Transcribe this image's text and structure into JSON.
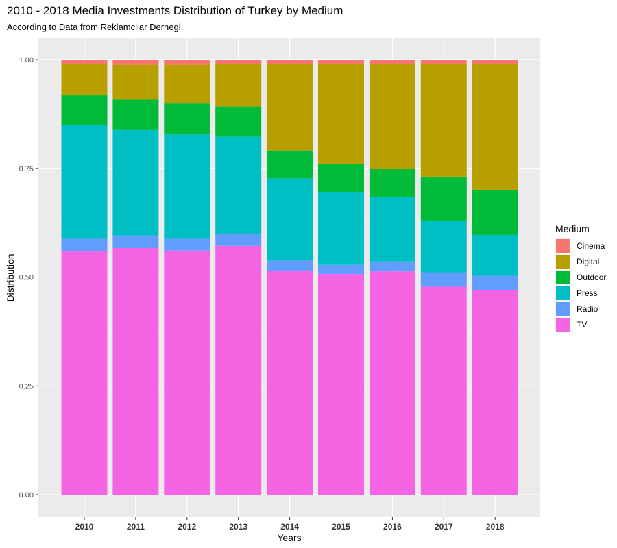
{
  "chart_data": {
    "type": "bar",
    "stacked": true,
    "title": "2010 - 2018 Media Investments Distribution of Turkey by Medium",
    "subtitle": "According to Data from Reklamcilar Dernegi",
    "xlabel": "Years",
    "ylabel": "Distribution",
    "ylim": [
      0,
      1.0
    ],
    "yticks": [
      "0.00",
      "0.25",
      "0.50",
      "0.75",
      "1.00"
    ],
    "grid": true,
    "categories": [
      "2010",
      "2011",
      "2012",
      "2013",
      "2014",
      "2015",
      "2016",
      "2017",
      "2018"
    ],
    "legend": {
      "title": "Medium",
      "position": "right"
    },
    "series": [
      {
        "name": "TV",
        "color": "#F564E3",
        "values": [
          0.559,
          0.567,
          0.561,
          0.572,
          0.514,
          0.507,
          0.513,
          0.478,
          0.47
        ]
      },
      {
        "name": "Radio",
        "color": "#619CFF",
        "values": [
          0.029,
          0.029,
          0.027,
          0.027,
          0.024,
          0.021,
          0.023,
          0.033,
          0.033
        ]
      },
      {
        "name": "Press",
        "color": "#00BFC4",
        "values": [
          0.262,
          0.242,
          0.24,
          0.224,
          0.189,
          0.168,
          0.148,
          0.119,
          0.094
        ]
      },
      {
        "name": "Outdoor",
        "color": "#00BA38",
        "values": [
          0.068,
          0.07,
          0.071,
          0.069,
          0.064,
          0.064,
          0.064,
          0.101,
          0.104
        ]
      },
      {
        "name": "Digital",
        "color": "#B79F00",
        "values": [
          0.071,
          0.08,
          0.089,
          0.097,
          0.198,
          0.229,
          0.242,
          0.258,
          0.288
        ]
      },
      {
        "name": "Cinema",
        "color": "#F8766D",
        "values": [
          0.011,
          0.012,
          0.012,
          0.011,
          0.011,
          0.011,
          0.01,
          0.011,
          0.011
        ]
      }
    ],
    "legend_order": [
      "Cinema",
      "Digital",
      "Outdoor",
      "Press",
      "Radio",
      "TV"
    ]
  }
}
